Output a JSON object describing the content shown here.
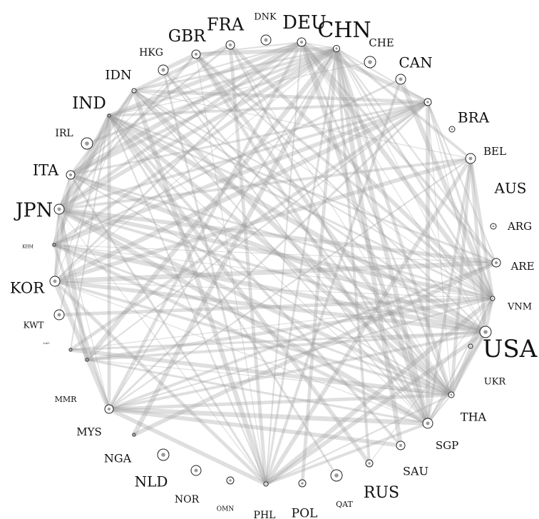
{
  "colors": {
    "edge": "#9a9a9a",
    "node_stroke": "#222222",
    "node_fill": "#ffffff",
    "label": "#111111"
  },
  "nodes": [
    {
      "id": "CHN",
      "label": "CHN"
    },
    {
      "id": "CHE",
      "label": "CHE"
    },
    {
      "id": "CAN",
      "label": "CAN"
    },
    {
      "id": "BRA",
      "label": "BRA"
    },
    {
      "id": "BEL",
      "label": "BEL"
    },
    {
      "id": "AUS",
      "label": "AUS"
    },
    {
      "id": "ARG",
      "label": "ARG"
    },
    {
      "id": "ARE",
      "label": "ARE"
    },
    {
      "id": "VNM",
      "label": "VNM"
    },
    {
      "id": "USA",
      "label": "USA"
    },
    {
      "id": "UKR",
      "label": "UKR"
    },
    {
      "id": "THA",
      "label": "THA"
    },
    {
      "id": "SGP",
      "label": "SGP"
    },
    {
      "id": "SAU",
      "label": "SAU"
    },
    {
      "id": "RUS",
      "label": "RUS"
    },
    {
      "id": "QAT",
      "label": "QAT"
    },
    {
      "id": "POL",
      "label": "POL"
    },
    {
      "id": "PHL",
      "label": "PHL"
    },
    {
      "id": "OMN",
      "label": "OMN"
    },
    {
      "id": "NOR",
      "label": "NOR"
    },
    {
      "id": "NLD",
      "label": "NLD"
    },
    {
      "id": "NGA",
      "label": "NGA"
    },
    {
      "id": "MYS",
      "label": "MYS"
    },
    {
      "id": "MMR",
      "label": "MMR"
    },
    {
      "id": "LAO",
      "label": "LAO"
    },
    {
      "id": "KWT",
      "label": "KWT"
    },
    {
      "id": "KOR",
      "label": "KOR"
    },
    {
      "id": "KHM",
      "label": "KHM"
    },
    {
      "id": "JPN",
      "label": "JPN"
    },
    {
      "id": "ITA",
      "label": "ITA"
    },
    {
      "id": "IRL",
      "label": "IRL"
    },
    {
      "id": "IND",
      "label": "IND"
    },
    {
      "id": "IDN",
      "label": "IDN"
    },
    {
      "id": "HKG",
      "label": "HKG"
    },
    {
      "id": "GBR",
      "label": "GBR"
    },
    {
      "id": "FRA",
      "label": "FRA"
    },
    {
      "id": "DNK",
      "label": "DNK"
    },
    {
      "id": "DEU",
      "label": "DEU"
    }
  ],
  "edges": [
    [
      "CHN",
      "USA"
    ],
    [
      "CHN",
      "VNM"
    ],
    [
      "CHN",
      "THA"
    ],
    [
      "CHN",
      "SGP"
    ],
    [
      "CHN",
      "MYS"
    ],
    [
      "CHN",
      "IND"
    ],
    [
      "CHN",
      "JPN"
    ],
    [
      "CHN",
      "KOR"
    ],
    [
      "CHN",
      "PHL"
    ],
    [
      "CHN",
      "KHM"
    ],
    [
      "CHN",
      "MMR"
    ],
    [
      "CHN",
      "BRA"
    ],
    [
      "CHN",
      "AUS"
    ],
    [
      "CHN",
      "GBR"
    ],
    [
      "CHN",
      "DEU"
    ],
    [
      "CHN",
      "IDN"
    ],
    [
      "CHN",
      "ITA"
    ],
    [
      "CHN",
      "NGA"
    ],
    [
      "CHN",
      "ARE"
    ],
    [
      "CHN",
      "RUS"
    ],
    [
      "IND",
      "THA"
    ],
    [
      "IND",
      "SGP"
    ],
    [
      "IND",
      "VNM"
    ],
    [
      "IND",
      "MYS"
    ],
    [
      "IND",
      "USA"
    ],
    [
      "IND",
      "PHL"
    ],
    [
      "IND",
      "BRA"
    ],
    [
      "IND",
      "DEU"
    ],
    [
      "IND",
      "CHE"
    ],
    [
      "IND",
      "ARE"
    ],
    [
      "IND",
      "JPN"
    ],
    [
      "IND",
      "KHM"
    ],
    [
      "IND",
      "LAO"
    ],
    [
      "IND",
      "SAU"
    ],
    [
      "IND",
      "RUS"
    ],
    [
      "KHM",
      "VNM"
    ],
    [
      "KHM",
      "THA"
    ],
    [
      "KHM",
      "SGP"
    ],
    [
      "KHM",
      "USA"
    ],
    [
      "KHM",
      "JPN"
    ],
    [
      "KHM",
      "MYS"
    ],
    [
      "KHM",
      "BRA"
    ],
    [
      "KHM",
      "ARE"
    ],
    [
      "KHM",
      "CAN"
    ],
    [
      "MYS",
      "THA"
    ],
    [
      "MYS",
      "SGP"
    ],
    [
      "MYS",
      "VNM"
    ],
    [
      "MYS",
      "USA"
    ],
    [
      "MYS",
      "PHL"
    ],
    [
      "MYS",
      "JPN"
    ],
    [
      "MYS",
      "BRA"
    ],
    [
      "MYS",
      "DEU"
    ],
    [
      "MYS",
      "KOR"
    ],
    [
      "MYS",
      "AUS"
    ],
    [
      "MYS",
      "ARE"
    ],
    [
      "MYS",
      "SAU"
    ],
    [
      "MMR",
      "THA"
    ],
    [
      "MMR",
      "SGP"
    ],
    [
      "MMR",
      "VNM"
    ],
    [
      "MMR",
      "JPN"
    ],
    [
      "MMR",
      "BRA"
    ],
    [
      "MMR",
      "USA"
    ],
    [
      "LAO",
      "THA"
    ],
    [
      "LAO",
      "VNM"
    ],
    [
      "LAO",
      "USA"
    ],
    [
      "LAO",
      "BRA"
    ],
    [
      "PHL",
      "VNM"
    ],
    [
      "PHL",
      "THA"
    ],
    [
      "PHL",
      "SGP"
    ],
    [
      "PHL",
      "USA"
    ],
    [
      "PHL",
      "JPN"
    ],
    [
      "PHL",
      "HKG"
    ],
    [
      "PHL",
      "FRA"
    ],
    [
      "PHL",
      "IDN"
    ],
    [
      "PHL",
      "DEU"
    ],
    [
      "PHL",
      "CAN"
    ],
    [
      "PHL",
      "AUS"
    ],
    [
      "PHL",
      "GBR"
    ],
    [
      "PHL",
      "ITA"
    ],
    [
      "PHL",
      "KOR"
    ],
    [
      "VNM",
      "THA"
    ],
    [
      "VNM",
      "SGP"
    ],
    [
      "VNM",
      "USA"
    ],
    [
      "VNM",
      "JPN"
    ],
    [
      "VNM",
      "KOR"
    ],
    [
      "VNM",
      "BRA"
    ],
    [
      "VNM",
      "AUS"
    ],
    [
      "VNM",
      "DEU"
    ],
    [
      "VNM",
      "IDN"
    ],
    [
      "VNM",
      "GBR"
    ],
    [
      "VNM",
      "FRA"
    ],
    [
      "VNM",
      "HKG"
    ],
    [
      "VNM",
      "ITA"
    ],
    [
      "VNM",
      "KWT"
    ],
    [
      "VNM",
      "CAN"
    ],
    [
      "THA",
      "SGP"
    ],
    [
      "THA",
      "USA"
    ],
    [
      "THA",
      "JPN"
    ],
    [
      "THA",
      "BRA"
    ],
    [
      "THA",
      "DEU"
    ],
    [
      "THA",
      "AUS"
    ],
    [
      "THA",
      "IDN"
    ],
    [
      "THA",
      "ITA"
    ],
    [
      "THA",
      "KOR"
    ],
    [
      "THA",
      "GBR"
    ],
    [
      "THA",
      "FRA"
    ],
    [
      "THA",
      "HKG"
    ],
    [
      "SGP",
      "USA"
    ],
    [
      "SGP",
      "JPN"
    ],
    [
      "SGP",
      "IDN"
    ],
    [
      "SGP",
      "AUS"
    ],
    [
      "SGP",
      "BRA"
    ],
    [
      "SGP",
      "KOR"
    ],
    [
      "SGP",
      "FRA"
    ],
    [
      "SGP",
      "GBR"
    ],
    [
      "SGP",
      "DEU"
    ],
    [
      "SGP",
      "HKG"
    ],
    [
      "BRA",
      "JPN"
    ],
    [
      "BRA",
      "DEU"
    ],
    [
      "BRA",
      "USA"
    ],
    [
      "BRA",
      "ITA"
    ],
    [
      "BRA",
      "IDN"
    ],
    [
      "BRA",
      "KOR"
    ],
    [
      "BRA",
      "ARE"
    ],
    [
      "USA",
      "JPN"
    ],
    [
      "USA",
      "KOR"
    ],
    [
      "USA",
      "DEU"
    ],
    [
      "USA",
      "IDN"
    ],
    [
      "USA",
      "AUS"
    ],
    [
      "USA",
      "ITA"
    ],
    [
      "USA",
      "GBR"
    ],
    [
      "AUS",
      "JPN"
    ],
    [
      "AUS",
      "KOR"
    ],
    [
      "AUS",
      "IDN"
    ],
    [
      "JPN",
      "KOR"
    ],
    [
      "JPN",
      "DEU"
    ],
    [
      "JPN",
      "IDN"
    ],
    [
      "JPN",
      "ITA"
    ],
    [
      "JPN",
      "GBR"
    ],
    [
      "JPN",
      "ARE"
    ],
    [
      "KOR",
      "IDN"
    ],
    [
      "KOR",
      "DEU"
    ],
    [
      "KOR",
      "ITA"
    ],
    [
      "KOR",
      "ARE"
    ],
    [
      "IDN",
      "DEU"
    ],
    [
      "IDN",
      "ITA"
    ],
    [
      "GBR",
      "HKG"
    ],
    [
      "GBR",
      "ITA"
    ],
    [
      "FRA",
      "ITA"
    ],
    [
      "FRA",
      "IDN"
    ],
    [
      "DEU",
      "ITA"
    ],
    [
      "DEU",
      "GBR"
    ],
    [
      "ARE",
      "DEU"
    ],
    [
      "NGA",
      "ARE"
    ],
    [
      "RUS",
      "VNM"
    ],
    [
      "QAT",
      "IND"
    ],
    [
      "POL",
      "CHN"
    ],
    [
      "SAU",
      "CHN"
    ],
    [
      "KWT",
      "IND"
    ],
    [
      "IRL",
      "CHN"
    ]
  ]
}
